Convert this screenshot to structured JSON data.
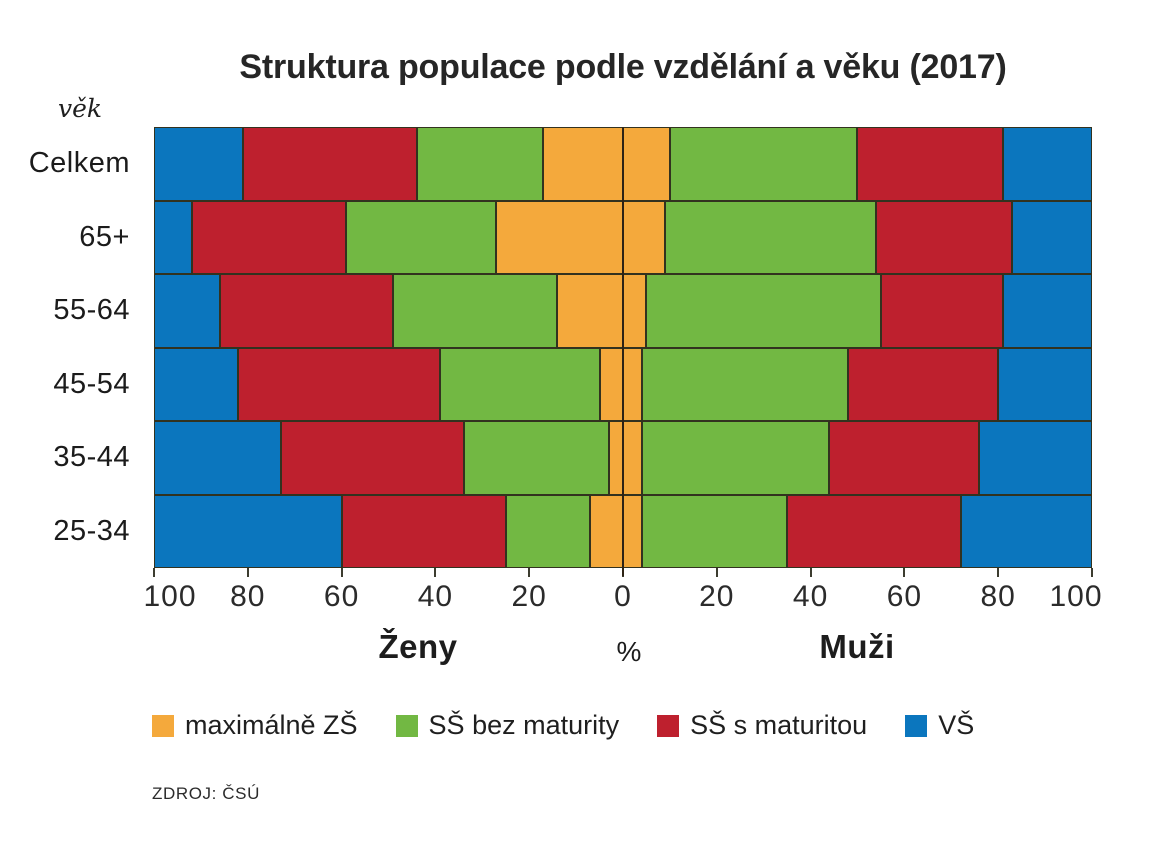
{
  "source": "ZDROJ: ČSÚ",
  "chart_data": {
    "type": "bar",
    "variant": "population-pyramid-stacked-100pct",
    "title": "Struktura populace podle vzdělání a věku (2017)",
    "y_axis_label": "věk",
    "unit_label": "%",
    "left_group_label": "Ženy",
    "right_group_label": "Muži",
    "categories": [
      "Celkem",
      "65+",
      "55-64",
      "45-54",
      "35-44",
      "25-34"
    ],
    "x_tick_labels": [
      "100",
      "80",
      "60",
      "40",
      "20",
      "0",
      "20",
      "40",
      "60",
      "80",
      "100"
    ],
    "x_axis_range_each_side": [
      0,
      100
    ],
    "grid": false,
    "legend_position": "bottom",
    "stack_order_note": "stacked from center axis outward per side",
    "series": [
      {
        "name": "maximálně ZŠ",
        "color": "#F4A93C",
        "women": [
          17,
          27,
          14,
          5,
          3,
          7
        ],
        "men": [
          10,
          9,
          5,
          4,
          4,
          4
        ]
      },
      {
        "name": "SŠ bez maturity",
        "color": "#72B843",
        "women": [
          27,
          32,
          35,
          34,
          31,
          18
        ],
        "men": [
          40,
          45,
          50,
          44,
          40,
          31
        ]
      },
      {
        "name": "SŠ s maturitou",
        "color": "#BE202E",
        "women": [
          37,
          33,
          37,
          43,
          39,
          35
        ],
        "men": [
          31,
          29,
          26,
          32,
          32,
          37
        ]
      },
      {
        "name": "VŠ",
        "color": "#0B76BE",
        "women": [
          19,
          8,
          14,
          18,
          27,
          40
        ],
        "men": [
          19,
          17,
          19,
          20,
          24,
          28
        ]
      }
    ]
  }
}
